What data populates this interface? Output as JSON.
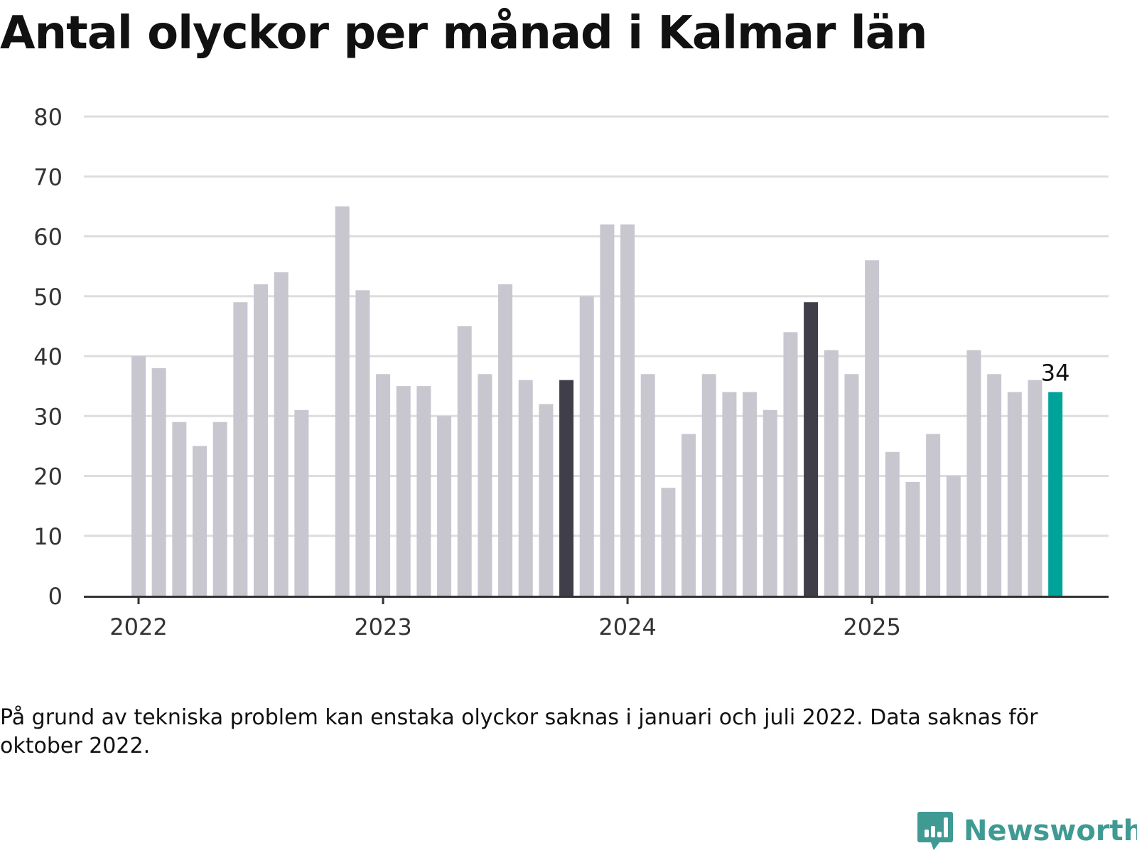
{
  "title": "Antal olyckor per månad i Kalmar län",
  "note": "På grund av tekniska problem kan enstaka olyckor saknas i januari och juli 2022. Data saknas för oktober 2022.",
  "brand": {
    "name": "Newsworthy",
    "icon": "newsworthy-logo-icon",
    "color": "#3f9a94"
  },
  "colors": {
    "bar": "#c8c7d0",
    "highlight": "#3f3e49",
    "latest": "#00a39a",
    "grid": "#dddddd",
    "axis": "#333333"
  },
  "chart_data": {
    "type": "bar",
    "title": "Antal olyckor per månad i Kalmar län",
    "xlabel": "",
    "ylabel": "",
    "ylim": [
      0,
      80
    ],
    "yticks": [
      0,
      10,
      20,
      30,
      40,
      50,
      60,
      70,
      80
    ],
    "xtick_labels": [
      {
        "label": "2022",
        "at": "2022-01"
      },
      {
        "label": "2023",
        "at": "2023-01"
      },
      {
        "label": "2024",
        "at": "2024-01"
      },
      {
        "label": "2025",
        "at": "2025-01"
      }
    ],
    "grid": true,
    "categories": [
      "2022-01",
      "2022-02",
      "2022-03",
      "2022-04",
      "2022-05",
      "2022-06",
      "2022-07",
      "2022-08",
      "2022-09",
      "2022-10",
      "2022-11",
      "2022-12",
      "2023-01",
      "2023-02",
      "2023-03",
      "2023-04",
      "2023-05",
      "2023-06",
      "2023-07",
      "2023-08",
      "2023-09",
      "2023-10",
      "2023-11",
      "2023-12",
      "2024-01",
      "2024-02",
      "2024-03",
      "2024-04",
      "2024-05",
      "2024-06",
      "2024-07",
      "2024-08",
      "2024-09",
      "2024-10",
      "2024-11",
      "2024-12",
      "2025-01",
      "2025-02",
      "2025-03",
      "2025-04",
      "2025-05",
      "2025-06",
      "2025-07",
      "2025-08",
      "2025-09",
      "2025-10"
    ],
    "values": [
      40,
      38,
      29,
      25,
      29,
      49,
      52,
      54,
      31,
      null,
      65,
      51,
      37,
      35,
      35,
      30,
      45,
      37,
      52,
      36,
      32,
      36,
      50,
      62,
      62,
      37,
      18,
      27,
      37,
      34,
      34,
      31,
      44,
      49,
      41,
      37,
      56,
      24,
      19,
      27,
      20,
      41,
      37,
      34,
      36,
      34
    ],
    "highlighted": [
      "2023-10",
      "2024-10"
    ],
    "latest": "2025-10",
    "data_labels": [
      {
        "category": "2025-10",
        "text": "34"
      }
    ]
  }
}
